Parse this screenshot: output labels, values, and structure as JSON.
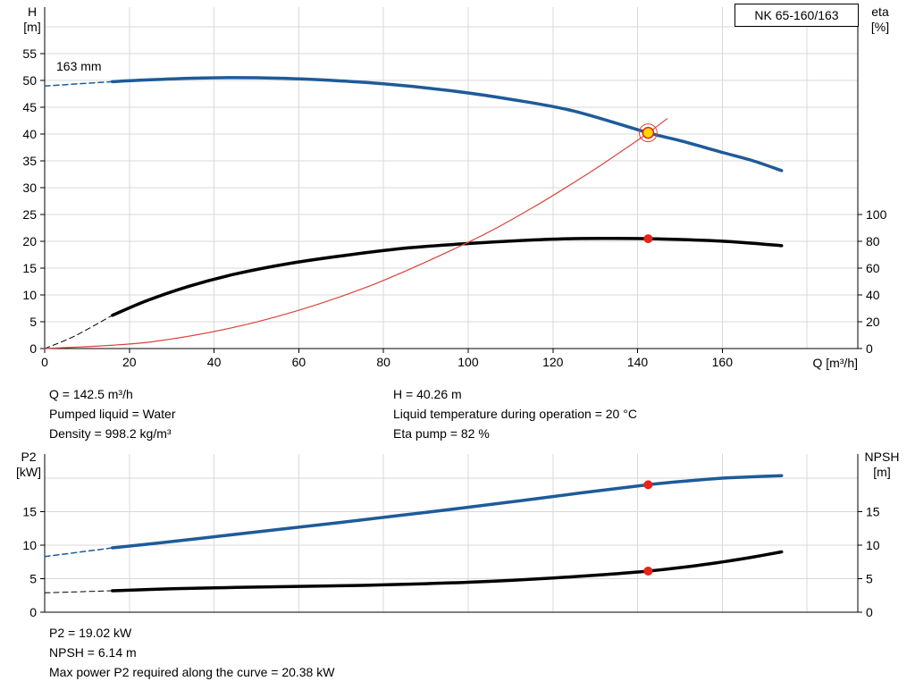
{
  "info": {
    "left": [
      "Q = 142.5 m³/h",
      "Pumped liquid = Water",
      "Density = 998.2 kg/m³"
    ],
    "right": [
      "H = 40.26 m",
      "Liquid temperature during operation = 20 °C",
      "Eta pump = 82 %"
    ]
  },
  "results": [
    "P2 = 19.02 kW",
    "NPSH = 6.14 m",
    "Max power P2 required along the curve = 20.38 kW"
  ],
  "colors": {
    "curve_blue": "#1e5b99",
    "curve_black": "#000000",
    "curve_red": "#d9453c",
    "marker_red": "#e8231a",
    "marker_yellow": "#ffd800",
    "grid": "#d9d9d9",
    "axis": "#000000",
    "text": "#000000"
  },
  "chart_data": [
    {
      "id": "hq",
      "type": "line",
      "title": "NK 65-160/163",
      "xlabel": "Q [m³/h]",
      "xlim": [
        0,
        192
      ],
      "x_ticks": [
        0,
        20,
        40,
        60,
        80,
        100,
        120,
        140,
        160
      ],
      "x_grid": [
        20,
        40,
        60,
        80,
        100,
        120,
        140,
        160,
        180
      ],
      "y_grid": [
        5,
        10,
        15,
        20,
        25,
        30,
        35,
        40,
        45,
        50,
        55,
        60
      ],
      "left_axis": {
        "label": "H\n[m]",
        "ticks": [
          0,
          5,
          10,
          15,
          20,
          25,
          30,
          35,
          40,
          45,
          50,
          55
        ],
        "lim": [
          0,
          63.7
        ]
      },
      "right_axis": {
        "label": "eta\n[%]",
        "ticks": [
          0,
          20,
          40,
          60,
          80,
          100
        ],
        "factor": 0.25
      },
      "annotations": [
        {
          "text": "163 mm",
          "x": 4,
          "y": 53
        }
      ],
      "series": [
        {
          "name": "efficiency-curve",
          "axis": "right-as-left",
          "color": "curve_black",
          "width": 3.5,
          "points": [
            [
              16,
              6.2
            ],
            [
              24,
              8.9
            ],
            [
              34,
              11.6
            ],
            [
              45,
              13.9
            ],
            [
              58,
              15.9
            ],
            [
              72,
              17.5
            ],
            [
              86,
              18.8
            ],
            [
              100,
              19.6
            ],
            [
              112,
              20.15
            ],
            [
              124,
              20.5
            ],
            [
              134,
              20.55
            ],
            [
              142.5,
              20.5
            ],
            [
              152,
              20.3
            ],
            [
              163,
              19.9
            ],
            [
              174,
              19.2
            ]
          ]
        },
        {
          "name": "efficiency-curve-extension",
          "color": "curve_black",
          "width": 1,
          "dash": true,
          "points": [
            [
              0,
              0
            ],
            [
              7,
              2.3
            ],
            [
              16,
              6.2
            ]
          ]
        },
        {
          "name": "head-curve",
          "color": "curve_blue",
          "width": 3.5,
          "points": [
            [
              16,
              49.8
            ],
            [
              25,
              50.15
            ],
            [
              35,
              50.45
            ],
            [
              45,
              50.55
            ],
            [
              55,
              50.45
            ],
            [
              65,
              50.15
            ],
            [
              80,
              49.4
            ],
            [
              95,
              48.2
            ],
            [
              110,
              46.5
            ],
            [
              125,
              44.3
            ],
            [
              142.5,
              40.26
            ],
            [
              150,
              38.8
            ],
            [
              160,
              36.6
            ],
            [
              167,
              35.1
            ],
            [
              174,
              33.2
            ]
          ]
        },
        {
          "name": "head-curve-extension",
          "color": "curve_blue",
          "width": 1.5,
          "dash": true,
          "points": [
            [
              0,
              49.0
            ],
            [
              8,
              49.4
            ],
            [
              16,
              49.8
            ]
          ]
        },
        {
          "name": "system-curve",
          "color": "curve_red",
          "width": 1.2,
          "points": [
            [
              0,
              0
            ],
            [
              25,
              1.24
            ],
            [
              50,
              4.96
            ],
            [
              75,
              11.15
            ],
            [
              100,
              19.83
            ],
            [
              115,
              26.2
            ],
            [
              128,
              32.5
            ],
            [
              136,
              36.7
            ],
            [
              142.5,
              40.26
            ],
            [
              147,
              42.9
            ]
          ]
        }
      ],
      "markers": [
        {
          "name": "duty-point",
          "x": 142.5,
          "y": 40.26,
          "style": "duty"
        },
        {
          "name": "efficiency-point",
          "x": 142.5,
          "y": 20.5,
          "style": "dot"
        }
      ]
    },
    {
      "id": "p2-npsh",
      "type": "line",
      "xlabel": "",
      "xlim": [
        0,
        192
      ],
      "x_ticks": [],
      "x_grid": [
        20,
        40,
        60,
        80,
        100,
        120,
        140,
        160,
        180
      ],
      "y_grid": [
        5,
        10,
        15,
        20
      ],
      "left_axis": {
        "label": "P2\n[kW]",
        "ticks": [
          0,
          5,
          10,
          15
        ],
        "lim": [
          0,
          23.6
        ]
      },
      "right_axis": {
        "label": "NPSH\n[m]",
        "ticks": [
          0,
          5,
          10,
          15
        ],
        "factor": 1
      },
      "annotations": [],
      "series": [
        {
          "name": "p2-curve",
          "color": "curve_blue",
          "width": 3.5,
          "points": [
            [
              16,
              9.6
            ],
            [
              28,
              10.4
            ],
            [
              42,
              11.4
            ],
            [
              56,
              12.4
            ],
            [
              70,
              13.4
            ],
            [
              84,
              14.45
            ],
            [
              98,
              15.5
            ],
            [
              112,
              16.6
            ],
            [
              126,
              17.75
            ],
            [
              142.5,
              19.02
            ],
            [
              152,
              19.6
            ],
            [
              160,
              20.0
            ],
            [
              167,
              20.2
            ],
            [
              174,
              20.38
            ]
          ]
        },
        {
          "name": "p2-curve-extension",
          "color": "curve_blue",
          "width": 1.5,
          "dash": true,
          "points": [
            [
              0,
              8.3
            ],
            [
              16,
              9.6
            ]
          ]
        },
        {
          "name": "npsh-curve",
          "color": "curve_black",
          "width": 3.5,
          "points": [
            [
              16,
              3.2
            ],
            [
              30,
              3.5
            ],
            [
              45,
              3.7
            ],
            [
              60,
              3.85
            ],
            [
              75,
              4.0
            ],
            [
              90,
              4.25
            ],
            [
              105,
              4.6
            ],
            [
              120,
              5.1
            ],
            [
              132,
              5.6
            ],
            [
              142.5,
              6.14
            ],
            [
              152,
              6.8
            ],
            [
              160,
              7.5
            ],
            [
              167,
              8.2
            ],
            [
              174,
              9.0
            ]
          ]
        },
        {
          "name": "npsh-curve-extension",
          "color": "curve_black",
          "width": 1,
          "dash": true,
          "points": [
            [
              0,
              2.9
            ],
            [
              16,
              3.2
            ]
          ]
        }
      ],
      "markers": [
        {
          "name": "p2-point",
          "x": 142.5,
          "y": 19.02,
          "style": "dot"
        },
        {
          "name": "npsh-point",
          "x": 142.5,
          "y": 6.14,
          "style": "dot"
        }
      ]
    }
  ]
}
